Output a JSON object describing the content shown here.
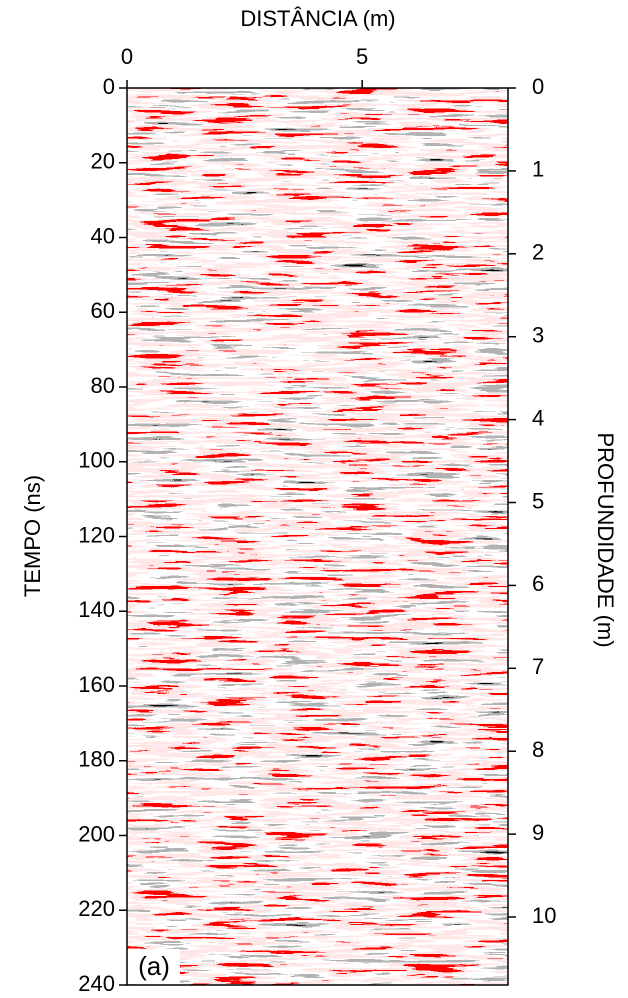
{
  "chart_data": {
    "type": "radargram",
    "title": "DISTÂNCIA (m)",
    "ylabel": "TEMPO (ns)",
    "y2label": "PROFUNDIDADE (m)",
    "panel_label": "(a)",
    "xlim": [
      0,
      8.1
    ],
    "xticks": [
      0,
      5
    ],
    "ylim": [
      0,
      240
    ],
    "yticks": [
      0,
      20,
      40,
      60,
      80,
      100,
      120,
      140,
      160,
      180,
      200,
      220,
      240
    ],
    "y2lim": [
      0,
      10.82
    ],
    "y2ticks": [
      0,
      1,
      2,
      3,
      4,
      5,
      6,
      7,
      8,
      9,
      10
    ]
  }
}
